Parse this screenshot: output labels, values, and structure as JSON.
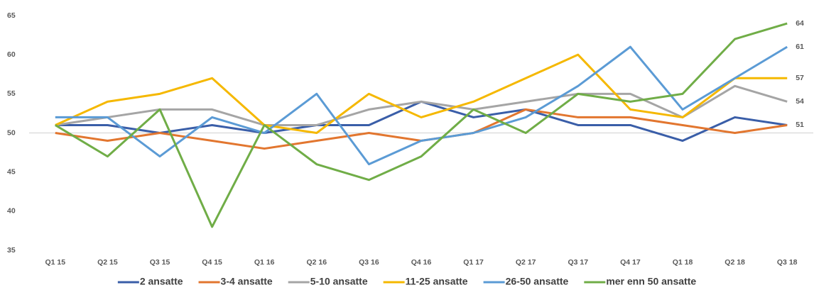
{
  "chart_data": {
    "type": "line",
    "categories": [
      "Q1 15",
      "Q2 15",
      "Q3 15",
      "Q4 15",
      "Q1 16",
      "Q2 16",
      "Q3 16",
      "Q4 16",
      "Q1 17",
      "Q2 17",
      "Q3 17",
      "Q4 17",
      "Q1 18",
      "Q2 18",
      "Q3 18"
    ],
    "series": [
      {
        "name": "2 ansatte",
        "color": "#3a5ea8",
        "values": [
          51,
          51,
          50,
          51,
          50,
          51,
          51,
          54,
          52,
          53,
          51,
          51,
          49,
          52,
          51
        ],
        "label_last": true
      },
      {
        "name": "3-4 ansatte",
        "color": "#e2762f",
        "values": [
          50,
          49,
          50,
          49,
          48,
          49,
          50,
          49,
          50,
          53,
          52,
          52,
          51,
          50,
          51
        ],
        "label_last": false
      },
      {
        "name": "5-10 ansatte",
        "color": "#a5a5a5",
        "values": [
          51,
          52,
          53,
          53,
          51,
          51,
          53,
          54,
          53,
          54,
          55,
          55,
          52,
          56,
          54
        ],
        "label_last": true
      },
      {
        "name": "11-25 ansatte",
        "color": "#f5b800",
        "values": [
          51,
          54,
          55,
          57,
          51,
          50,
          55,
          52,
          54,
          57,
          60,
          53,
          52,
          57,
          57
        ],
        "label_last": true
      },
      {
        "name": "26-50 ansatte",
        "color": "#5b9bd5",
        "values": [
          52,
          52,
          47,
          52,
          50,
          55,
          46,
          49,
          50,
          52,
          56,
          61,
          53,
          57,
          61
        ],
        "label_last": true
      },
      {
        "name": "mer enn 50 ansatte",
        "color": "#70ad47",
        "values": [
          51,
          47,
          53,
          38,
          51,
          46,
          44,
          47,
          53,
          50,
          55,
          54,
          55,
          62,
          64
        ],
        "label_last": true
      }
    ],
    "ylim": [
      35,
      65
    ],
    "yticks": [
      35,
      40,
      45,
      50,
      55,
      60,
      65
    ],
    "hline": 50,
    "grid": false,
    "legend": "bottom"
  }
}
